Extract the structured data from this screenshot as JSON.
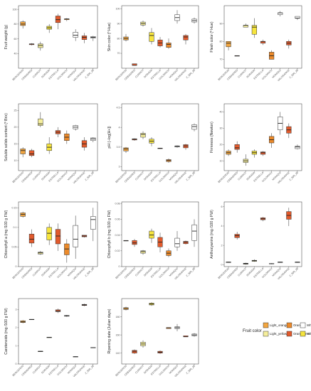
{
  "varieties": [
    "BERGERON",
    "CEBASRED",
    "CURROT",
    "DORADA",
    "ESTRELLA",
    "GOLDRICH",
    "MONIQUI",
    "VALORANGE",
    "Z_506_38"
  ],
  "variety_colors": [
    "Light_orange",
    "Orange_red",
    "Light_yellow",
    "Yellow",
    "Orange_red",
    "Orange",
    "White",
    "Orange_red",
    "White"
  ],
  "colors": {
    "Light_orange": "#f3a640",
    "Orange": "#ec8a2a",
    "Orange_red": "#e25a2c",
    "Light_yellow": "#f6ef9c",
    "Yellow": "#f6e43d",
    "White": "#ffffff"
  },
  "legend": {
    "title": "Fruit color",
    "items": [
      {
        "key": "Light_orange",
        "label": "Light_orange"
      },
      {
        "key": "Orange",
        "label": "Orange"
      },
      {
        "key": "White",
        "label": "White"
      },
      {
        "key": "Light_yellow",
        "label": "Light_yellow"
      },
      {
        "key": "Orange_red",
        "label": "Orange_red"
      },
      {
        "key": "Yellow",
        "label": "Yellow"
      }
    ]
  },
  "chart_data": [
    {
      "type": "box",
      "ylabel": "Fruit weight (g)",
      "ylim": [
        20,
        105
      ],
      "yticks": [
        40,
        60,
        80,
        100
      ],
      "boxes": [
        [
          74,
          78,
          80,
          83,
          85
        ],
        [
          51,
          52,
          53,
          53,
          54
        ],
        [
          44,
          48,
          51,
          53,
          56
        ],
        [
          68,
          73,
          75,
          77,
          80
        ],
        [
          73,
          82,
          86,
          91,
          94
        ],
        [
          84,
          86,
          87,
          87,
          88
        ],
        [
          57,
          62,
          65,
          69,
          73
        ],
        [
          54,
          59,
          62,
          64,
          68
        ],
        [
          57,
          61,
          62,
          63,
          64
        ]
      ]
    },
    {
      "type": "box",
      "ylabel": "Skin color (º Hue)",
      "ylim": [
        60,
        102
      ],
      "yticks": [
        70,
        80,
        90,
        100
      ],
      "boxes": [
        [
          78,
          79,
          80,
          81,
          83
        ],
        [
          62,
          62,
          62,
          63,
          63
        ],
        [
          88,
          89,
          90,
          91,
          92
        ],
        [
          76,
          78,
          82,
          84,
          87
        ],
        [
          74,
          75,
          77,
          79,
          81
        ],
        [
          73,
          74,
          76,
          77,
          80
        ],
        [
          90,
          92,
          94,
          96,
          99
        ],
        [
          76,
          79,
          81,
          82,
          83
        ],
        [
          90,
          91,
          92,
          93,
          94
        ]
      ]
    },
    {
      "type": "box",
      "ylabel": "Flesh color (º Hue)",
      "ylim": [
        65,
        100
      ],
      "yticks": [
        70,
        80,
        90
      ],
      "boxes": [
        [
          75,
          77,
          79,
          80,
          80
        ],
        [
          72,
          72,
          72,
          72,
          72
        ],
        [
          88,
          88,
          89,
          89,
          90
        ],
        [
          82,
          84,
          88,
          89,
          93
        ],
        [
          78,
          79,
          80,
          80,
          81
        ],
        [
          70,
          70,
          72,
          74,
          75
        ],
        [
          94,
          95,
          96,
          96,
          97
        ],
        [
          76,
          78,
          79,
          80,
          81
        ],
        [
          92,
          93,
          93,
          94,
          94
        ]
      ]
    },
    {
      "type": "box",
      "ylabel": "Soluble solids content (º Brix)",
      "ylim": [
        7,
        27
      ],
      "yticks": [
        10,
        15,
        20,
        25
      ],
      "boxes": [
        [
          11,
          12,
          13,
          13.5,
          14
        ],
        [
          11,
          11.5,
          12,
          13,
          13.5
        ],
        [
          20,
          20.5,
          21,
          22.5,
          24.5
        ],
        [
          12,
          13,
          14,
          15,
          17
        ],
        [
          17,
          18,
          18.5,
          19,
          20
        ],
        [
          15,
          16,
          17,
          18,
          19
        ],
        [
          19,
          19.5,
          20,
          20.5,
          20.7
        ],
        [
          13,
          14,
          15,
          16,
          17
        ],
        [
          15.5,
          16,
          16.5,
          16.8,
          17
        ]
      ]
    },
    {
      "type": "box",
      "ylabel": "pH (−log[H+])",
      "ylim": [
        2.9,
        4.6
      ],
      "yticks": [
        3.0,
        3.5,
        4.0,
        4.5
      ],
      "boxes": [
        [
          3.35,
          3.4,
          3.45,
          3.48,
          3.5
        ],
        [
          3.66,
          3.68,
          3.7,
          3.71,
          3.72
        ],
        [
          3.7,
          3.75,
          3.82,
          3.85,
          3.9
        ],
        [
          3.52,
          3.6,
          3.65,
          3.7,
          3.75
        ],
        [
          3.45,
          3.46,
          3.47,
          3.47,
          3.48
        ],
        [
          3.1,
          3.13,
          3.16,
          3.18,
          3.21
        ],
        [
          3.48,
          3.5,
          3.52,
          3.53,
          3.54
        ],
        [
          3.43,
          3.48,
          3.53,
          3.56,
          3.58
        ],
        [
          3.9,
          3.95,
          4.02,
          4.07,
          4.1
        ]
      ]
    },
    {
      "type": "box",
      "ylabel": "Firmness (Newton)",
      "ylim": [
        4,
        45
      ],
      "yticks": [
        10,
        20,
        30,
        40
      ],
      "boxes": [
        [
          13,
          14,
          15,
          16,
          17
        ],
        [
          15,
          17,
          18,
          20,
          22
        ],
        [
          7,
          9,
          10,
          11,
          14
        ],
        [
          12,
          14,
          15,
          16,
          17
        ],
        [
          13,
          14,
          15,
          15.5,
          16
        ],
        [
          18,
          21,
          23,
          25,
          27
        ],
        [
          26,
          29,
          33,
          37,
          40
        ],
        [
          24,
          27,
          29,
          31,
          33
        ],
        [
          17,
          17.5,
          18.5,
          19,
          20
        ]
      ]
    },
    {
      "type": "box",
      "ylabel": "Chlorophyll a (mg /100 g FW)",
      "ylim": [
        0,
        0.165
      ],
      "yticks": [
        0,
        0.05,
        0.1,
        0.15
      ],
      "boxes": [
        [
          0.125,
          0.128,
          0.133,
          0.137,
          0.14
        ],
        [
          0.05,
          0.06,
          0.07,
          0.083,
          0.095
        ],
        [
          0.03,
          0.032,
          0.035,
          0.037,
          0.04
        ],
        [
          0.055,
          0.068,
          0.085,
          0.1,
          0.11
        ],
        [
          0.04,
          0.058,
          0.078,
          0.095,
          0.11
        ],
        [
          0.01,
          0.03,
          0.045,
          0.058,
          0.07
        ],
        [
          0.02,
          0.05,
          0.07,
          0.105,
          0.13
        ],
        [
          0.074,
          0.076,
          0.078,
          0.08,
          0.08
        ],
        [
          0.065,
          0.095,
          0.12,
          0.128,
          0.15
        ]
      ]
    },
    {
      "type": "box",
      "ylabel": "Chlorophyll b (mg /100 g FW)",
      "ylim": [
        0,
        0.082
      ],
      "yticks": [
        0,
        0.02,
        0.04,
        0.06,
        0.08
      ],
      "boxes": [
        [
          0.033,
          0.033,
          0.033,
          0.033,
          0.033
        ],
        [
          0.025,
          0.028,
          0.03,
          0.033,
          0.035
        ],
        [
          0.015,
          0.017,
          0.019,
          0.02,
          0.021
        ],
        [
          0.03,
          0.036,
          0.04,
          0.045,
          0.048
        ],
        [
          0.018,
          0.025,
          0.031,
          0.037,
          0.043
        ],
        [
          0.012,
          0.014,
          0.017,
          0.02,
          0.023
        ],
        [
          0.02,
          0.025,
          0.029,
          0.036,
          0.045
        ],
        [
          0.028,
          0.029,
          0.031,
          0.032,
          0.033
        ],
        [
          0.025,
          0.033,
          0.045,
          0.053,
          0.06
        ]
      ]
    },
    {
      "type": "box",
      "ylabel": "Anthocyanins (mg /100 g FW)",
      "ylim": [
        -0.2,
        6.5
      ],
      "yticks": [
        0,
        2,
        4,
        6
      ],
      "boxes": [
        [
          0.2,
          0.22,
          0.25,
          0.28,
          0.3
        ],
        [
          2.6,
          2.8,
          3.0,
          3.15,
          3.4
        ],
        [
          0.0,
          0.05,
          0.1,
          0.15,
          0.2
        ],
        [
          0.3,
          0.35,
          0.4,
          0.45,
          0.55
        ],
        [
          4.5,
          4.65,
          4.75,
          4.85,
          4.95
        ],
        [
          0.05,
          0.08,
          0.1,
          0.12,
          0.15
        ],
        [
          0.2,
          0.22,
          0.25,
          0.28,
          0.3
        ],
        [
          4.0,
          4.7,
          5.1,
          5.5,
          5.9
        ],
        [
          0.2,
          0.22,
          0.25,
          0.28,
          0.3
        ]
      ]
    },
    {
      "type": "box",
      "ylabel": "Carotenoids (mg /100 g FW)",
      "ylim": [
        0,
        3.6
      ],
      "yticks": [
        0,
        1,
        2,
        3
      ],
      "boxes": [
        [
          2.24,
          2.28,
          2.32,
          2.38,
          2.42
        ],
        [
          2.44,
          2.45,
          2.45,
          2.46,
          2.46
        ],
        [
          0.68,
          0.69,
          0.7,
          0.7,
          0.71
        ],
        [
          1.45,
          1.46,
          1.47,
          1.47,
          1.48
        ],
        [
          2.8,
          2.88,
          2.92,
          2.98,
          3.05
        ],
        [
          2.6,
          2.63,
          2.65,
          2.67,
          2.7
        ],
        [
          0.38,
          0.39,
          0.4,
          0.41,
          0.42
        ],
        [
          3.18,
          3.22,
          3.25,
          3.28,
          3.32
        ],
        [
          0.9,
          0.9,
          0.9,
          0.91,
          0.91
        ]
      ]
    },
    {
      "type": "box",
      "ylabel": "Ripening date (Julian days)",
      "ylim": [
        128,
        200
      ],
      "yticks": [
        140,
        160,
        180
      ],
      "boxes": [
        [
          187,
          188,
          189,
          190,
          191
        ],
        [
          139,
          140,
          142,
          143,
          144
        ],
        [
          146,
          148,
          150,
          152,
          154
        ],
        [
          192,
          193,
          194,
          195,
          196
        ],
        [
          139,
          140,
          141,
          142,
          143
        ],
        [
          167,
          167,
          168,
          168,
          168
        ],
        [
          164,
          167,
          168,
          169,
          172
        ],
        [
          158,
          158,
          158,
          159,
          159
        ],
        [
          158,
          159,
          160,
          161,
          162
        ]
      ]
    }
  ]
}
